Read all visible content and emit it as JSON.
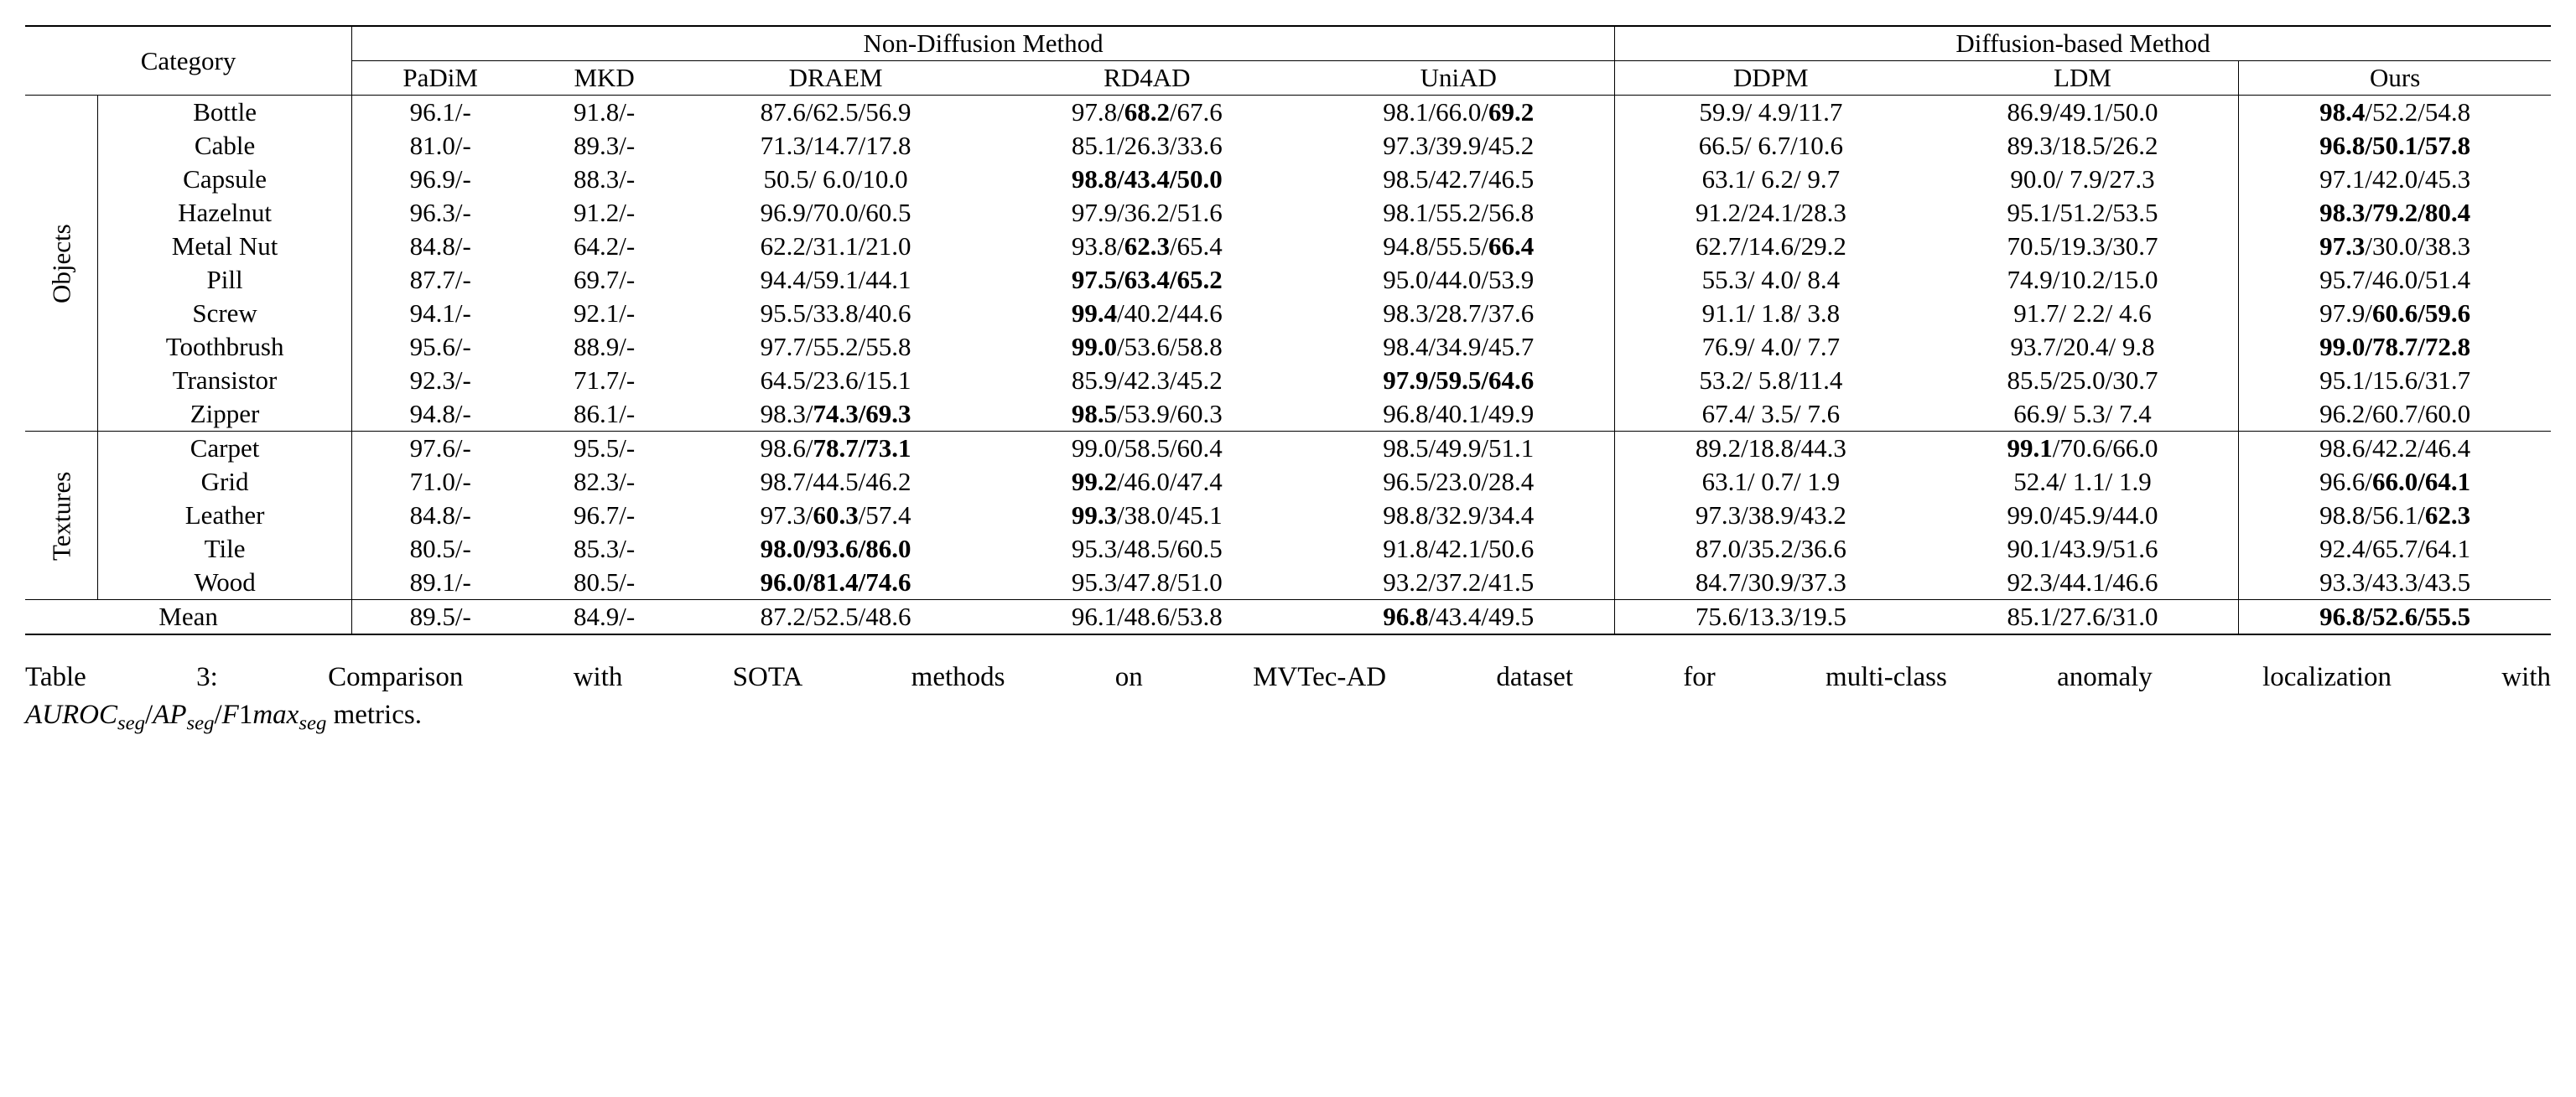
{
  "header": {
    "category": "Category",
    "group1": "Non-Diffusion Method",
    "group2": "Diffusion-based Method",
    "methods": [
      "PaDiM",
      "MKD",
      "DRAEM",
      "RD4AD",
      "UniAD",
      "DDPM",
      "LDM",
      "Ours"
    ]
  },
  "group_labels": {
    "objects": "Objects",
    "textures": "Textures"
  },
  "rows_objects": [
    {
      "cat": "Bottle",
      "cells": [
        {
          "segs": [
            {
              "t": "96.1/-"
            }
          ]
        },
        {
          "segs": [
            {
              "t": "91.8/-"
            }
          ]
        },
        {
          "segs": [
            {
              "t": "87.6/62.5/56.9"
            }
          ]
        },
        {
          "segs": [
            {
              "t": "97.8/"
            },
            {
              "t": "68.2",
              "b": true
            },
            {
              "t": "/67.6"
            }
          ]
        },
        {
          "segs": [
            {
              "t": "98.1/66.0/"
            },
            {
              "t": "69.2",
              "b": true
            }
          ]
        },
        {
          "segs": [
            {
              "t": "59.9/ 4.9/11.7"
            }
          ]
        },
        {
          "segs": [
            {
              "t": "86.9/49.1/50.0"
            }
          ]
        },
        {
          "segs": [
            {
              "t": "98.4",
              "b": true
            },
            {
              "t": "/52.2/54.8"
            }
          ]
        }
      ]
    },
    {
      "cat": "Cable",
      "cells": [
        {
          "segs": [
            {
              "t": "81.0/-"
            }
          ]
        },
        {
          "segs": [
            {
              "t": "89.3/-"
            }
          ]
        },
        {
          "segs": [
            {
              "t": "71.3/14.7/17.8"
            }
          ]
        },
        {
          "segs": [
            {
              "t": "85.1/26.3/33.6"
            }
          ]
        },
        {
          "segs": [
            {
              "t": "97.3/39.9/45.2"
            }
          ]
        },
        {
          "segs": [
            {
              "t": "66.5/ 6.7/10.6"
            }
          ]
        },
        {
          "segs": [
            {
              "t": "89.3/18.5/26.2"
            }
          ]
        },
        {
          "segs": [
            {
              "t": "96.8/50.1/57.8",
              "b": true
            }
          ]
        }
      ]
    },
    {
      "cat": "Capsule",
      "cells": [
        {
          "segs": [
            {
              "t": "96.9/-"
            }
          ]
        },
        {
          "segs": [
            {
              "t": "88.3/-"
            }
          ]
        },
        {
          "segs": [
            {
              "t": "50.5/ 6.0/10.0"
            }
          ]
        },
        {
          "segs": [
            {
              "t": "98.8/43.4/50.0",
              "b": true
            }
          ]
        },
        {
          "segs": [
            {
              "t": "98.5/42.7/46.5"
            }
          ]
        },
        {
          "segs": [
            {
              "t": "63.1/ 6.2/ 9.7"
            }
          ]
        },
        {
          "segs": [
            {
              "t": "90.0/ 7.9/27.3"
            }
          ]
        },
        {
          "segs": [
            {
              "t": "97.1/42.0/45.3"
            }
          ]
        }
      ]
    },
    {
      "cat": "Hazelnut",
      "cells": [
        {
          "segs": [
            {
              "t": "96.3/-"
            }
          ]
        },
        {
          "segs": [
            {
              "t": "91.2/-"
            }
          ]
        },
        {
          "segs": [
            {
              "t": "96.9/70.0/60.5"
            }
          ]
        },
        {
          "segs": [
            {
              "t": "97.9/36.2/51.6"
            }
          ]
        },
        {
          "segs": [
            {
              "t": "98.1/55.2/56.8"
            }
          ]
        },
        {
          "segs": [
            {
              "t": "91.2/24.1/28.3"
            }
          ]
        },
        {
          "segs": [
            {
              "t": "95.1/51.2/53.5"
            }
          ]
        },
        {
          "segs": [
            {
              "t": "98.3/79.2/80.4",
              "b": true
            }
          ]
        }
      ]
    },
    {
      "cat": "Metal Nut",
      "cells": [
        {
          "segs": [
            {
              "t": "84.8/-"
            }
          ]
        },
        {
          "segs": [
            {
              "t": "64.2/-"
            }
          ]
        },
        {
          "segs": [
            {
              "t": "62.2/31.1/21.0"
            }
          ]
        },
        {
          "segs": [
            {
              "t": "93.8/"
            },
            {
              "t": "62.3",
              "b": true
            },
            {
              "t": "/65.4"
            }
          ]
        },
        {
          "segs": [
            {
              "t": "94.8/55.5/"
            },
            {
              "t": "66.4",
              "b": true
            }
          ]
        },
        {
          "segs": [
            {
              "t": "62.7/14.6/29.2"
            }
          ]
        },
        {
          "segs": [
            {
              "t": "70.5/19.3/30.7"
            }
          ]
        },
        {
          "segs": [
            {
              "t": "97.3",
              "b": true
            },
            {
              "t": "/30.0/38.3"
            }
          ]
        }
      ]
    },
    {
      "cat": "Pill",
      "cells": [
        {
          "segs": [
            {
              "t": "87.7/-"
            }
          ]
        },
        {
          "segs": [
            {
              "t": "69.7/-"
            }
          ]
        },
        {
          "segs": [
            {
              "t": "94.4/59.1/44.1"
            }
          ]
        },
        {
          "segs": [
            {
              "t": "97.5/63.4/65.2",
              "b": true
            }
          ]
        },
        {
          "segs": [
            {
              "t": "95.0/44.0/53.9"
            }
          ]
        },
        {
          "segs": [
            {
              "t": "55.3/ 4.0/ 8.4"
            }
          ]
        },
        {
          "segs": [
            {
              "t": "74.9/10.2/15.0"
            }
          ]
        },
        {
          "segs": [
            {
              "t": "95.7/46.0/51.4"
            }
          ]
        }
      ]
    },
    {
      "cat": "Screw",
      "cells": [
        {
          "segs": [
            {
              "t": "94.1/-"
            }
          ]
        },
        {
          "segs": [
            {
              "t": "92.1/-"
            }
          ]
        },
        {
          "segs": [
            {
              "t": "95.5/33.8/40.6"
            }
          ]
        },
        {
          "segs": [
            {
              "t": "99.4",
              "b": true
            },
            {
              "t": "/40.2/44.6"
            }
          ]
        },
        {
          "segs": [
            {
              "t": "98.3/28.7/37.6"
            }
          ]
        },
        {
          "segs": [
            {
              "t": "91.1/ 1.8/ 3.8"
            }
          ]
        },
        {
          "segs": [
            {
              "t": "91.7/ 2.2/ 4.6"
            }
          ]
        },
        {
          "segs": [
            {
              "t": "97.9/"
            },
            {
              "t": "60.6/59.6",
              "b": true
            }
          ]
        }
      ]
    },
    {
      "cat": "Toothbrush",
      "cells": [
        {
          "segs": [
            {
              "t": "95.6/-"
            }
          ]
        },
        {
          "segs": [
            {
              "t": "88.9/-"
            }
          ]
        },
        {
          "segs": [
            {
              "t": "97.7/55.2/55.8"
            }
          ]
        },
        {
          "segs": [
            {
              "t": "99.0",
              "b": true
            },
            {
              "t": "/53.6/58.8"
            }
          ]
        },
        {
          "segs": [
            {
              "t": "98.4/34.9/45.7"
            }
          ]
        },
        {
          "segs": [
            {
              "t": "76.9/ 4.0/ 7.7"
            }
          ]
        },
        {
          "segs": [
            {
              "t": "93.7/20.4/ 9.8"
            }
          ]
        },
        {
          "segs": [
            {
              "t": "99.0/78.7/72.8",
              "b": true
            }
          ]
        }
      ]
    },
    {
      "cat": "Transistor",
      "cells": [
        {
          "segs": [
            {
              "t": "92.3/-"
            }
          ]
        },
        {
          "segs": [
            {
              "t": "71.7/-"
            }
          ]
        },
        {
          "segs": [
            {
              "t": "64.5/23.6/15.1"
            }
          ]
        },
        {
          "segs": [
            {
              "t": "85.9/42.3/45.2"
            }
          ]
        },
        {
          "segs": [
            {
              "t": "97.9/59.5/64.6",
              "b": true
            }
          ]
        },
        {
          "segs": [
            {
              "t": "53.2/ 5.8/11.4"
            }
          ]
        },
        {
          "segs": [
            {
              "t": "85.5/25.0/30.7"
            }
          ]
        },
        {
          "segs": [
            {
              "t": "95.1/15.6/31.7"
            }
          ]
        }
      ]
    },
    {
      "cat": "Zipper",
      "cells": [
        {
          "segs": [
            {
              "t": "94.8/-"
            }
          ]
        },
        {
          "segs": [
            {
              "t": "86.1/-"
            }
          ]
        },
        {
          "segs": [
            {
              "t": "98.3/"
            },
            {
              "t": "74.3/69.3",
              "b": true
            }
          ]
        },
        {
          "segs": [
            {
              "t": "98.5",
              "b": true
            },
            {
              "t": "/53.9/60.3"
            }
          ]
        },
        {
          "segs": [
            {
              "t": "96.8/40.1/49.9"
            }
          ]
        },
        {
          "segs": [
            {
              "t": "67.4/ 3.5/ 7.6"
            }
          ]
        },
        {
          "segs": [
            {
              "t": "66.9/ 5.3/ 7.4"
            }
          ]
        },
        {
          "segs": [
            {
              "t": "96.2/60.7/60.0"
            }
          ]
        }
      ]
    }
  ],
  "rows_textures": [
    {
      "cat": "Carpet",
      "cells": [
        {
          "segs": [
            {
              "t": "97.6/-"
            }
          ]
        },
        {
          "segs": [
            {
              "t": "95.5/-"
            }
          ]
        },
        {
          "segs": [
            {
              "t": "98.6/"
            },
            {
              "t": "78.7/73.1",
              "b": true
            }
          ]
        },
        {
          "segs": [
            {
              "t": "99.0/58.5/60.4"
            }
          ]
        },
        {
          "segs": [
            {
              "t": "98.5/49.9/51.1"
            }
          ]
        },
        {
          "segs": [
            {
              "t": "89.2/18.8/44.3"
            }
          ]
        },
        {
          "segs": [
            {
              "t": "99.1",
              "b": true
            },
            {
              "t": "/70.6/66.0"
            }
          ]
        },
        {
          "segs": [
            {
              "t": "98.6/42.2/46.4"
            }
          ]
        }
      ]
    },
    {
      "cat": "Grid",
      "cells": [
        {
          "segs": [
            {
              "t": "71.0/-"
            }
          ]
        },
        {
          "segs": [
            {
              "t": "82.3/-"
            }
          ]
        },
        {
          "segs": [
            {
              "t": "98.7/44.5/46.2"
            }
          ]
        },
        {
          "segs": [
            {
              "t": "99.2",
              "b": true
            },
            {
              "t": "/46.0/47.4"
            }
          ]
        },
        {
          "segs": [
            {
              "t": "96.5/23.0/28.4"
            }
          ]
        },
        {
          "segs": [
            {
              "t": "63.1/ 0.7/ 1.9"
            }
          ]
        },
        {
          "segs": [
            {
              "t": "52.4/ 1.1/ 1.9"
            }
          ]
        },
        {
          "segs": [
            {
              "t": "96.6/"
            },
            {
              "t": "66.0/64.1",
              "b": true
            }
          ]
        }
      ]
    },
    {
      "cat": "Leather",
      "cells": [
        {
          "segs": [
            {
              "t": "84.8/-"
            }
          ]
        },
        {
          "segs": [
            {
              "t": "96.7/-"
            }
          ]
        },
        {
          "segs": [
            {
              "t": "97.3/"
            },
            {
              "t": "60.3",
              "b": true
            },
            {
              "t": "/57.4"
            }
          ]
        },
        {
          "segs": [
            {
              "t": "99.3",
              "b": true
            },
            {
              "t": "/38.0/45.1"
            }
          ]
        },
        {
          "segs": [
            {
              "t": "98.8/32.9/34.4"
            }
          ]
        },
        {
          "segs": [
            {
              "t": "97.3/38.9/43.2"
            }
          ]
        },
        {
          "segs": [
            {
              "t": "99.0/45.9/44.0"
            }
          ]
        },
        {
          "segs": [
            {
              "t": "98.8/56.1/"
            },
            {
              "t": "62.3",
              "b": true
            }
          ]
        }
      ]
    },
    {
      "cat": "Tile",
      "cells": [
        {
          "segs": [
            {
              "t": "80.5/-"
            }
          ]
        },
        {
          "segs": [
            {
              "t": "85.3/-"
            }
          ]
        },
        {
          "segs": [
            {
              "t": "98.0/93.6/86.0",
              "b": true
            }
          ]
        },
        {
          "segs": [
            {
              "t": "95.3/48.5/60.5"
            }
          ]
        },
        {
          "segs": [
            {
              "t": "91.8/42.1/50.6"
            }
          ]
        },
        {
          "segs": [
            {
              "t": "87.0/35.2/36.6"
            }
          ]
        },
        {
          "segs": [
            {
              "t": "90.1/43.9/51.6"
            }
          ]
        },
        {
          "segs": [
            {
              "t": "92.4/65.7/64.1"
            }
          ]
        }
      ]
    },
    {
      "cat": "Wood",
      "cells": [
        {
          "segs": [
            {
              "t": "89.1/-"
            }
          ]
        },
        {
          "segs": [
            {
              "t": "80.5/-"
            }
          ]
        },
        {
          "segs": [
            {
              "t": "96.0/81.4/74.6",
              "b": true
            }
          ]
        },
        {
          "segs": [
            {
              "t": "95.3/47.8/51.0"
            }
          ]
        },
        {
          "segs": [
            {
              "t": "93.2/37.2/41.5"
            }
          ]
        },
        {
          "segs": [
            {
              "t": "84.7/30.9/37.3"
            }
          ]
        },
        {
          "segs": [
            {
              "t": "92.3/44.1/46.6"
            }
          ]
        },
        {
          "segs": [
            {
              "t": "93.3/43.3/43.5"
            }
          ]
        }
      ]
    }
  ],
  "mean": {
    "label": "Mean",
    "cells": [
      {
        "segs": [
          {
            "t": "89.5/-"
          }
        ]
      },
      {
        "segs": [
          {
            "t": "84.9/-"
          }
        ]
      },
      {
        "segs": [
          {
            "t": "87.2/52.5/48.6"
          }
        ]
      },
      {
        "segs": [
          {
            "t": "96.1/48.6/53.8"
          }
        ]
      },
      {
        "segs": [
          {
            "t": "96.8",
            "b": true
          },
          {
            "t": "/43.4/49.5"
          }
        ]
      },
      {
        "segs": [
          {
            "t": "75.6/13.3/19.5"
          }
        ]
      },
      {
        "segs": [
          {
            "t": "85.1/27.6/31.0"
          }
        ]
      },
      {
        "segs": [
          {
            "t": "96.8/52.6/55.5",
            "b": true
          }
        ]
      }
    ]
  },
  "caption": {
    "prefix": "Table 3: Comparison with SOTA methods on MVTec-AD dataset for multi-class anomaly localization with",
    "metrics_prefix_AUROC": "AUROC",
    "metrics_sub": "seg",
    "slash": "/",
    "AP": "AP",
    "F1": "F",
    "one": "1",
    "max": "max",
    "suffix": " metrics."
  }
}
